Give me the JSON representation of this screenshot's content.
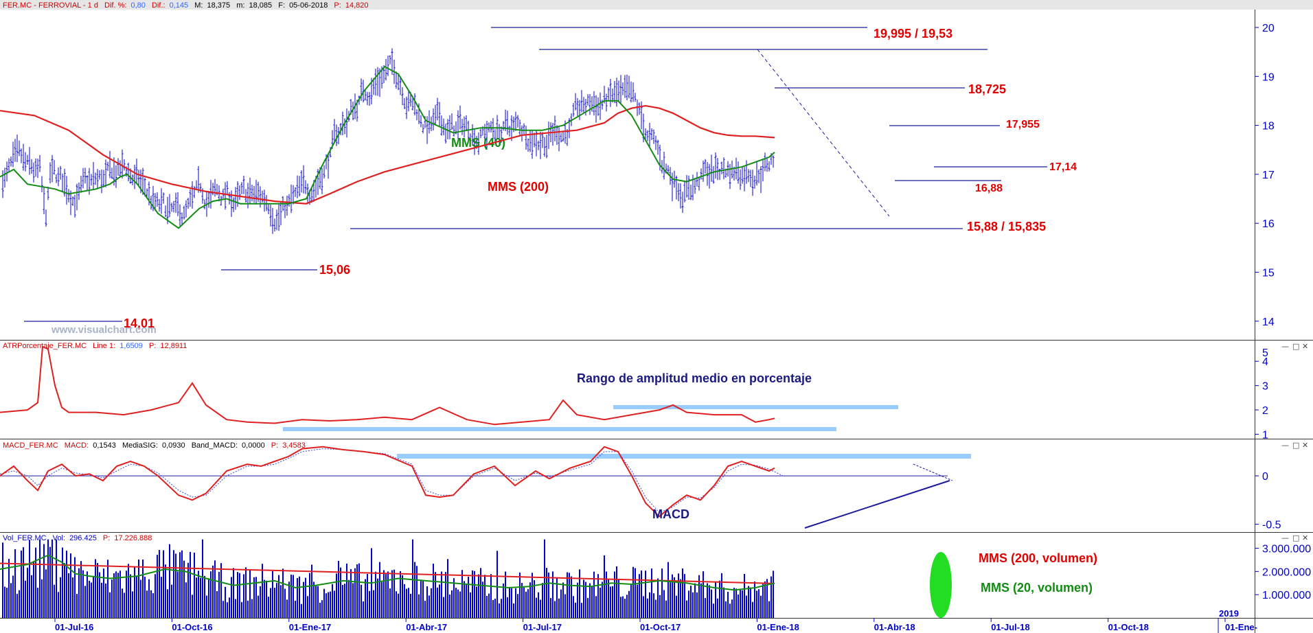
{
  "chart_data": [
    {
      "type": "line",
      "name": "price-panel",
      "header": {
        "symbol": "FER.MC - FERROVIAL - 1 d",
        "dif_pct_label": "Dif. %:",
        "dif_pct": "0,80",
        "dif_label": "Dif.:",
        "dif": "0,145",
        "max_label": "M:",
        "max": "18,375",
        "min_label": "m:",
        "min": "18,085",
        "date_label": "F:",
        "date": "05-06-2018",
        "price_label": "P:",
        "price": "14,820"
      },
      "watermark": "www.visualchart.com",
      "ylim": [
        13.6,
        20.3
      ],
      "yticks": [
        14,
        15,
        16,
        17,
        18,
        19,
        20
      ],
      "series": [
        {
          "name": "MMS (40)",
          "color": "#128c12",
          "x": [
            0,
            20,
            40,
            60,
            80,
            100,
            120,
            140,
            160,
            175,
            185,
            200,
            230,
            260,
            290,
            310,
            330,
            350,
            380,
            420,
            446,
            470,
            500,
            530,
            560,
            580,
            600,
            620,
            660,
            700,
            730,
            760,
            790,
            820,
            850,
            880,
            900,
            920,
            940,
            960,
            980,
            1000,
            1020,
            1040,
            1060,
            1080,
            1100,
            1120,
            1128
          ],
          "y": [
            16.95,
            17.1,
            16.8,
            16.75,
            16.7,
            16.6,
            16.65,
            16.7,
            16.8,
            16.95,
            17.0,
            16.8,
            16.2,
            15.9,
            16.3,
            16.45,
            16.5,
            16.4,
            16.4,
            16.4,
            16.5,
            17.2,
            18.0,
            18.7,
            19.2,
            19.05,
            18.6,
            18.1,
            17.85,
            17.95,
            17.95,
            17.9,
            17.9,
            18.0,
            18.25,
            18.5,
            18.5,
            18.2,
            17.7,
            17.2,
            16.9,
            16.85,
            16.95,
            17.05,
            17.1,
            17.15,
            17.25,
            17.35,
            17.45
          ]
        },
        {
          "name": "MMS (200)",
          "color": "#e02020",
          "x": [
            0,
            50,
            100,
            150,
            200,
            250,
            300,
            350,
            400,
            446,
            480,
            520,
            560,
            600,
            640,
            680,
            720,
            760,
            800,
            840,
            880,
            900,
            920,
            940,
            960,
            980,
            1000,
            1020,
            1040,
            1060,
            1080,
            1100,
            1128
          ],
          "y": [
            18.3,
            18.2,
            17.9,
            17.4,
            17.0,
            16.8,
            16.65,
            16.55,
            16.45,
            16.4,
            16.6,
            16.85,
            17.05,
            17.2,
            17.35,
            17.5,
            17.65,
            17.8,
            17.85,
            17.9,
            18.05,
            18.25,
            18.35,
            18.4,
            18.35,
            18.25,
            18.1,
            17.95,
            17.85,
            17.8,
            17.78,
            17.78,
            17.75
          ]
        }
      ],
      "levels": [
        {
          "label": "19,995 / 19,53"
        },
        {
          "label": "18,725"
        },
        {
          "label": "17,955"
        },
        {
          "label": "17,14"
        },
        {
          "label": "16,88"
        },
        {
          "label": "15,88 / 15,835"
        },
        {
          "label": "15,06"
        },
        {
          "label": "14,01"
        }
      ],
      "annotations": [
        "MMS (40)",
        "MMS (200)"
      ]
    },
    {
      "type": "line",
      "name": "atr-panel",
      "header": {
        "title": "ATRPorcentaje_FER.MC",
        "line_label": "Line 1:",
        "line_value": "1,6509",
        "p_label": "P:",
        "p_value": "12,8911"
      },
      "annotation": "Rango de amplitud medio en porcentaje",
      "ylim": [
        0.9,
        4.6
      ],
      "yticks": [
        1,
        2,
        3,
        4
      ],
      "top_tick": "5",
      "series": [
        {
          "name": "",
          "color": "#e02020",
          "x": [
            0,
            40,
            55,
            62,
            70,
            80,
            90,
            100,
            140,
            180,
            220,
            260,
            280,
            300,
            330,
            360,
            400,
            440,
            480,
            520,
            560,
            600,
            640,
            680,
            720,
            760,
            800,
            820,
            840,
            880,
            920,
            960,
            980,
            1000,
            1040,
            1080,
            1100,
            1120,
            1128
          ],
          "y": [
            1.9,
            2.0,
            2.3,
            4.6,
            4.5,
            3.0,
            2.1,
            1.9,
            1.9,
            1.8,
            2.0,
            2.3,
            3.1,
            2.2,
            1.6,
            1.5,
            1.45,
            1.6,
            1.55,
            1.6,
            1.7,
            1.6,
            2.1,
            1.6,
            1.4,
            1.5,
            1.6,
            2.4,
            1.8,
            1.6,
            1.8,
            2.0,
            2.2,
            1.9,
            1.8,
            1.8,
            1.5,
            1.6,
            1.65
          ]
        }
      ]
    },
    {
      "type": "line",
      "name": "macd-panel",
      "header": {
        "title": "MACD_FER.MC",
        "macd_label": "MACD:",
        "macd": "0,1543",
        "signal_label": "MediaSIG:",
        "signal": "0,0930",
        "band_label": "Band_MACD:",
        "band": "0,0000",
        "p_label": "P:",
        "p_value": "3,4583"
      },
      "annotation": "MACD",
      "ylim": [
        -0.56,
        0.32
      ],
      "yticks": [
        0,
        -0.5
      ],
      "ytick_labels": [
        "0",
        "-0.5"
      ],
      "series": [
        {
          "name": "MACD",
          "color": "#e02020",
          "x": [
            0,
            20,
            40,
            55,
            70,
            90,
            110,
            130,
            150,
            170,
            190,
            210,
            230,
            260,
            280,
            300,
            330,
            360,
            380,
            400,
            420,
            440,
            470,
            500,
            530,
            560,
            600,
            620,
            640,
            660,
            690,
            720,
            750,
            780,
            800,
            830,
            860,
            880,
            900,
            920,
            940,
            960,
            980,
            1000,
            1020,
            1040,
            1060,
            1080,
            1100,
            1120,
            1128
          ],
          "y": [
            0.0,
            0.1,
            -0.05,
            -0.15,
            0.05,
            0.12,
            0.0,
            0.02,
            -0.05,
            0.1,
            0.15,
            0.1,
            0.0,
            -0.2,
            -0.25,
            -0.18,
            0.05,
            0.12,
            0.1,
            0.15,
            0.2,
            0.28,
            0.3,
            0.27,
            0.25,
            0.22,
            0.1,
            -0.2,
            -0.22,
            -0.2,
            0.02,
            0.1,
            -0.1,
            0.05,
            -0.03,
            0.08,
            0.15,
            0.3,
            0.25,
            0.0,
            -0.28,
            -0.42,
            -0.3,
            -0.2,
            -0.25,
            -0.1,
            0.1,
            0.15,
            0.1,
            0.05,
            0.08
          ]
        },
        {
          "name": "MediaSIG",
          "color": "#3344dd",
          "x": [
            0,
            20,
            40,
            55,
            70,
            90,
            110,
            130,
            150,
            170,
            190,
            210,
            230,
            260,
            280,
            300,
            330,
            360,
            380,
            400,
            420,
            440,
            470,
            500,
            530,
            560,
            600,
            620,
            640,
            660,
            690,
            720,
            750,
            780,
            800,
            830,
            860,
            880,
            900,
            920,
            940,
            960,
            980,
            1000,
            1020,
            1040,
            1060,
            1080,
            1100,
            1120,
            1140
          ],
          "y": [
            0.02,
            0.05,
            0.0,
            -0.1,
            0.0,
            0.08,
            0.03,
            0.01,
            -0.02,
            0.05,
            0.12,
            0.1,
            0.03,
            -0.15,
            -0.22,
            -0.2,
            0.0,
            0.1,
            0.1,
            0.12,
            0.18,
            0.25,
            0.28,
            0.27,
            0.25,
            0.23,
            0.12,
            -0.15,
            -0.2,
            -0.2,
            0.0,
            0.08,
            -0.05,
            0.03,
            -0.01,
            0.06,
            0.12,
            0.25,
            0.25,
            0.05,
            -0.22,
            -0.38,
            -0.32,
            -0.22,
            -0.23,
            -0.12,
            0.05,
            0.12,
            0.11,
            0.07,
            0.0
          ]
        }
      ]
    },
    {
      "type": "bar",
      "name": "volume-panel",
      "header": {
        "title": "Vol_FER.MC",
        "vol_label": "Vol:",
        "vol": "296.425",
        "p_label": "P:",
        "p_value": "17.226.888"
      },
      "ylim": [
        0,
        3400000
      ],
      "yticks": [
        1000000,
        2000000,
        3000000
      ],
      "ytick_labels": [
        "1.000.000",
        "2.000.000",
        "3.000.000"
      ],
      "series": [
        {
          "name": "MMS (200, volumen)",
          "color": "#e02020",
          "x": [
            0,
            1128
          ],
          "y": [
            2350000,
            1480000
          ]
        },
        {
          "name": "MMS (20, volumen)",
          "color": "#128c12",
          "x": [
            0,
            40,
            70,
            90,
            110,
            130,
            160,
            200,
            240,
            270,
            300,
            340,
            370,
            400,
            430,
            460,
            500,
            540,
            580,
            620,
            660,
            700,
            740,
            770,
            800,
            830,
            860,
            890,
            920,
            960,
            1000,
            1040,
            1070,
            1100,
            1128
          ],
          "y": [
            2100000,
            2300000,
            2700000,
            2400000,
            1900000,
            1800000,
            1700000,
            1800000,
            2100000,
            2000000,
            1700000,
            1400000,
            1500000,
            1600000,
            1300000,
            1400000,
            1600000,
            1500000,
            1700000,
            1600000,
            1500000,
            1400000,
            1300000,
            1350000,
            1500000,
            1400000,
            1350000,
            1500000,
            1450000,
            1600000,
            1500000,
            1300000,
            1200000,
            1300000,
            1500000
          ]
        }
      ],
      "annotations": [
        "MMS (200, volumen)",
        "MMS (20, volumen)"
      ]
    }
  ],
  "x_axis": {
    "labels": [
      "01-Jul-16",
      "01-Oct-16",
      "01-Ene-17",
      "01-Abr-17",
      "01-Jul-17",
      "01-Oct-17",
      "01-Ene-18",
      "01-Abr-18",
      "01-Jul-18",
      "01-Oct-18",
      "01-Ene-"
    ],
    "year_label": "2019"
  },
  "colors": {
    "price_bars": "#0000cc",
    "axis": "#0000cc",
    "levels": "#1a1aa0",
    "highlight": "#99ccff",
    "vol_highlight": "#22dd22"
  }
}
